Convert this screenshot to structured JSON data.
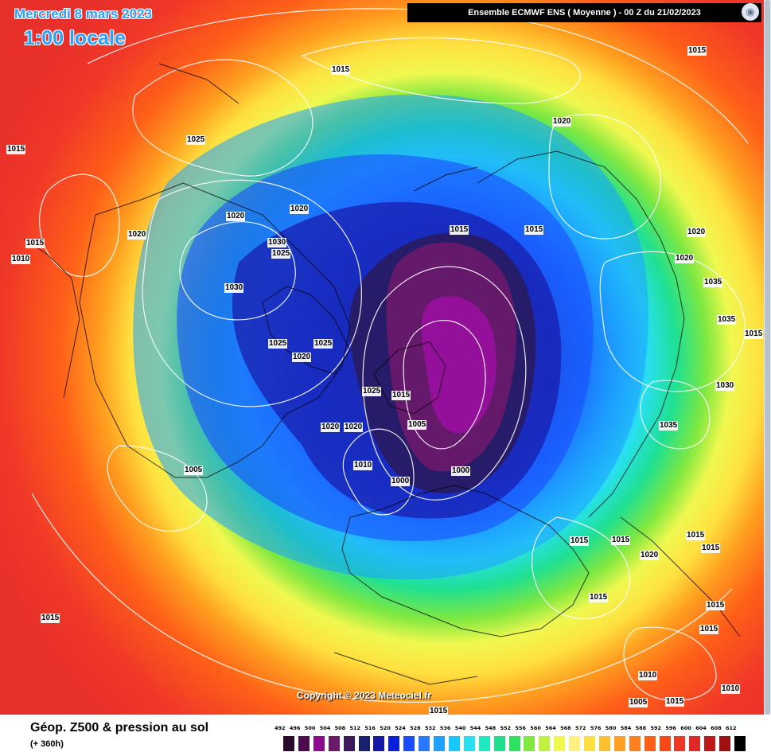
{
  "header": {
    "date": "Mercredi 8 mars 2023",
    "local_time": "1:00 locale",
    "model_run": "Ensemble ECMWF ENS  ( Moyenne )  -  00 Z du 21/02/2023"
  },
  "copyright": "Copyright © 2023 Meteociel.fr",
  "footer": {
    "title": "Géop. Z500 & pression au sol",
    "subtitle": "(+ 360h)"
  },
  "legend": {
    "values": [
      "492",
      "496",
      "500",
      "504",
      "508",
      "512",
      "516",
      "520",
      "524",
      "528",
      "532",
      "536",
      "540",
      "544",
      "548",
      "552",
      "556",
      "560",
      "564",
      "568",
      "572",
      "576",
      "580",
      "584",
      "588",
      "592",
      "596",
      "600",
      "604",
      "608",
      "612"
    ],
    "colors": [
      "#2a0a2a",
      "#4d0a4d",
      "#8c0a8c",
      "#6b1a6b",
      "#3a1a5a",
      "#1a1f6e",
      "#1818a8",
      "#0a20d8",
      "#1a4cff",
      "#2a78ff",
      "#1ea0ff",
      "#18c8ff",
      "#28e0f0",
      "#20e8c0",
      "#20e090",
      "#30e060",
      "#80e840",
      "#c0f040",
      "#f0f850",
      "#fff080",
      "#ffe040",
      "#ffc030",
      "#ffa020",
      "#ff8020",
      "#ff6018",
      "#f84818",
      "#f03828",
      "#e02828",
      "#c01818",
      "#a01010",
      "#000000"
    ]
  },
  "pressure_labels": [
    "1015",
    "1025",
    "1015",
    "1015",
    "1020",
    "1010",
    "1015",
    "1020",
    "1030",
    "1025",
    "1020",
    "1030",
    "1015",
    "1015",
    "1020",
    "1020",
    "1020",
    "1035",
    "1025",
    "1025",
    "1020",
    "1025",
    "1015",
    "1020",
    "1005",
    "1000",
    "1000",
    "1010",
    "1020",
    "1005",
    "1035",
    "1030",
    "1015",
    "1015",
    "1020",
    "1015",
    "1015",
    "1015",
    "1015",
    "1015",
    "1010",
    "1005",
    "1015",
    "1010",
    "1015",
    "1015",
    "1035",
    "1015"
  ]
}
